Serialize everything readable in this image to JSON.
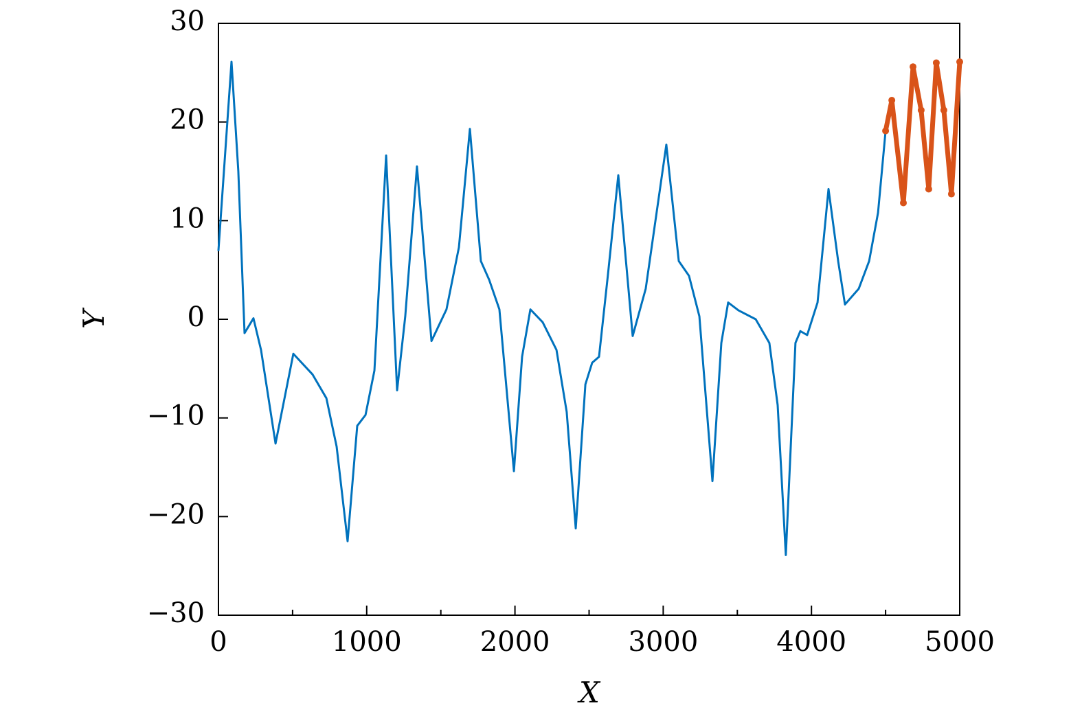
{
  "chart_data": {
    "type": "line",
    "x_label": "X",
    "y_label": "Y",
    "xlim": [
      0,
      5000
    ],
    "ylim": [
      -30,
      30
    ],
    "xticks": [
      0,
      1000,
      2000,
      3000,
      4000,
      5000
    ],
    "xminor_ticks": [
      500,
      1500,
      2500,
      3500,
      4500
    ],
    "yticks": [
      {
        "value": -30,
        "label": "−30"
      },
      {
        "value": -20,
        "label": "−20"
      },
      {
        "value": -10,
        "label": "−10"
      },
      0,
      10,
      20,
      30
    ],
    "series": [
      {
        "color": "#0072bd",
        "style": "line",
        "x": [
          0,
          88,
          134,
          176,
          236,
          287,
          385,
          505,
          635,
          728,
          797,
          871,
          936,
          992,
          1052,
          1131,
          1205,
          1260,
          1339,
          1437,
          1538,
          1622,
          1696,
          1770,
          1826,
          1895,
          1993,
          2048,
          2104,
          2187,
          2280,
          2349,
          2410,
          2475,
          2521,
          2567,
          2627,
          2697,
          2794,
          2882,
          3021,
          3105,
          3174,
          3244,
          3332,
          3392,
          3438,
          3508,
          3624,
          3716,
          3772,
          3827,
          3892,
          3925,
          3971,
          4041,
          4115,
          4180,
          4226,
          4319,
          4389,
          4449,
          4500
        ],
        "values": [
          7.0,
          26.1,
          15,
          -1.4,
          0.1,
          -3.1,
          -12.6,
          -3.5,
          -5.6,
          -8,
          -12.9,
          -22.5,
          -10.8,
          -9.7,
          -5.2,
          16.6,
          -7.2,
          0.3,
          15.5,
          -2.2,
          1,
          7.3,
          19.3,
          5.9,
          4,
          1,
          -15.4,
          -3.8,
          1,
          -0.3,
          -3.1,
          -9.4,
          -21.2,
          -6.6,
          -4.4,
          -3.8,
          4.5,
          14.6,
          -1.7,
          3.1,
          17.7,
          5.9,
          4.4,
          0.3,
          -16.4,
          -2.4,
          1.7,
          0.9,
          0,
          -2.4,
          -8.7,
          -23.9,
          -2.4,
          -1.2,
          -1.6,
          1.7,
          13.2,
          5.9,
          1.5,
          3.1,
          5.9,
          10.8,
          19.1
        ]
      },
      {
        "color": "#d95319",
        "style": "dots",
        "x": [
          4500,
          4542,
          4620,
          4685,
          4740,
          4791,
          4842,
          4893,
          4944,
          5000
        ],
        "values": [
          19.1,
          22.2,
          11.8,
          25.6,
          21.2,
          13.2,
          26,
          21.2,
          12.7,
          26.1
        ]
      }
    ]
  }
}
